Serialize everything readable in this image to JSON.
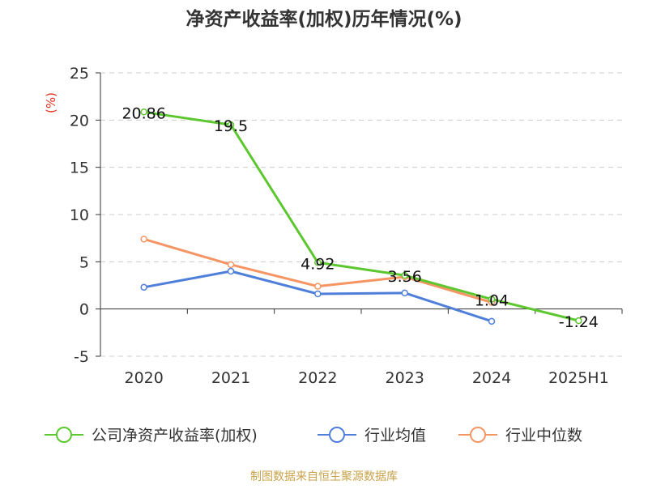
{
  "chart_data": {
    "type": "line",
    "title": "净资产收益率(加权)历年情况(%)",
    "ylabel": "(%)",
    "xlabel": "",
    "categories": [
      "2020",
      "2021",
      "2022",
      "2023",
      "2024",
      "2025H1"
    ],
    "ylim": [
      -5,
      25
    ],
    "yticks": [
      -5,
      0,
      5,
      10,
      15,
      20,
      25
    ],
    "grid": true,
    "legend_position": "bottom",
    "series": [
      {
        "name": "公司净资产收益率(加权)",
        "color": "#5cc72e",
        "values": [
          20.86,
          19.5,
          4.92,
          3.56,
          1.04,
          -1.24
        ],
        "labels": [
          "20.86",
          "19.5",
          "4.92",
          "3.56",
          "1.04",
          "-1.24"
        ]
      },
      {
        "name": "行业均值",
        "color": "#4f7fd9",
        "values": [
          2.3,
          4.0,
          1.6,
          1.7,
          -1.3,
          null
        ]
      },
      {
        "name": "行业中位数",
        "color": "#f59563",
        "values": [
          7.4,
          4.7,
          2.4,
          3.4,
          0.7,
          null
        ]
      }
    ],
    "source": "制图数据来自恒生聚源数据库"
  },
  "colors": {
    "title": "#333333",
    "axis": "#333333",
    "grid": "#cccccc",
    "ylabel": "#e0301e",
    "source": "#c8a24a"
  }
}
